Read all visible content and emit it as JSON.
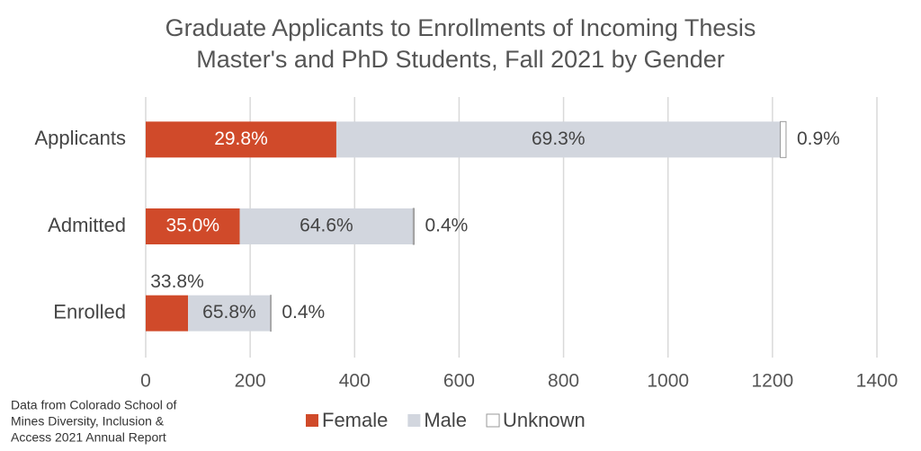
{
  "chart_data": {
    "type": "stacked-bar-horizontal",
    "title": [
      "Graduate Applicants to Enrollments of Incoming Thesis",
      "Master's and PhD Students, Fall 2021 by Gender"
    ],
    "categories": [
      "Applicants",
      "Admitted",
      "Enrolled"
    ],
    "series": [
      {
        "name": "Female",
        "color": "#d04a2a",
        "values": [
          365,
          180,
          81
        ],
        "percent_labels": [
          "29.8%",
          "35.0%",
          "33.8%"
        ]
      },
      {
        "name": "Male",
        "color": "#d2d6de",
        "values": [
          850,
          332,
          158
        ],
        "percent_labels": [
          "69.3%",
          "64.6%",
          "65.8%"
        ]
      },
      {
        "name": "Unknown",
        "color": "#ffffff",
        "values": [
          11,
          2,
          1
        ],
        "percent_labels": [
          "0.9%",
          "0.4%",
          "0.4%"
        ]
      }
    ],
    "xlim": [
      0,
      1400
    ],
    "xticks": [
      0,
      200,
      400,
      600,
      800,
      1000,
      1200,
      1400
    ],
    "grid": true,
    "note": [
      "Data from Colorado School of",
      "Mines Diversity, Inclusion &",
      "Access 2021 Annual Report"
    ]
  }
}
